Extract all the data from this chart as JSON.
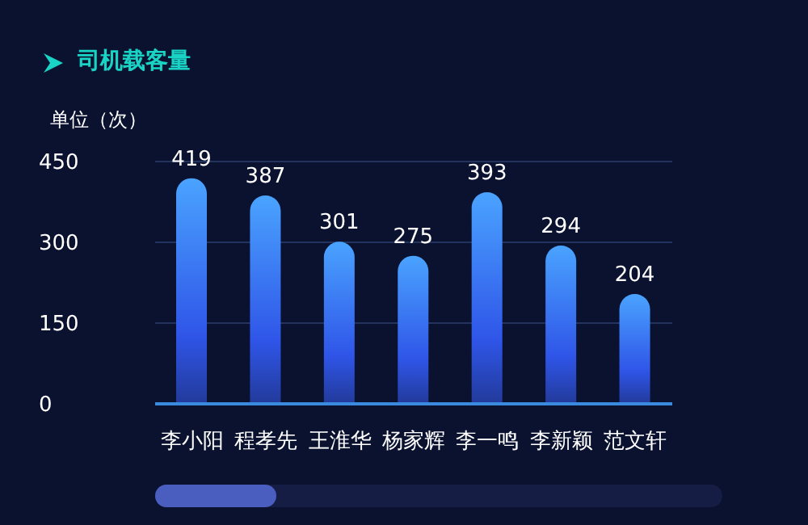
{
  "chart_data": {
    "type": "bar",
    "title": "司机载客量",
    "ylabel": "单位（次）",
    "categories": [
      "李小阳",
      "程孝先",
      "王淮华",
      "杨家辉",
      "李一鸣",
      "李新颖",
      "范文轩"
    ],
    "values": [
      419,
      387,
      301,
      275,
      393,
      294,
      204
    ],
    "color": "#4aa3ff",
    "ylim": [
      0,
      450
    ],
    "yticks": [
      0,
      150,
      300,
      450
    ],
    "grid": "y",
    "data_labels": true,
    "legend": false
  }
}
